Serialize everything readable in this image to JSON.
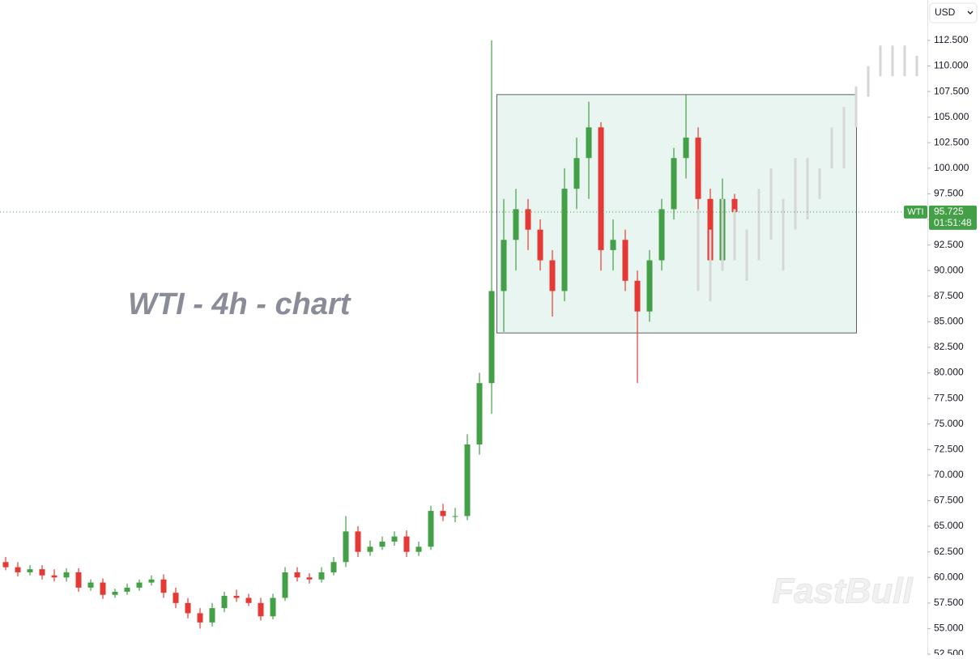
{
  "chart_data": {
    "type": "candlestick",
    "annotation": "WTI - 4h - chart",
    "watermark": "FastBull",
    "currency": "USD",
    "symbol": "WTI",
    "last_price": 95.725,
    "countdown": "01:51:48",
    "up_color": "#43a047",
    "down_color": "#e53935",
    "projection_color": "#d6d6d6",
    "open": [
      61.5,
      61,
      60.5,
      60.8,
      60.2,
      60,
      60.5,
      59,
      59.5,
      58.3,
      58.6,
      59,
      59.5,
      59.8,
      58.5,
      57.5,
      56.5,
      55.6,
      57,
      58.2,
      58,
      57.5,
      56.2,
      58,
      60.5,
      60,
      59.8,
      60.5,
      61.5,
      64.5,
      62.5,
      63,
      63.5,
      64,
      62.5,
      63,
      66.5,
      66,
      66,
      73,
      79,
      88,
      93,
      96,
      94,
      91,
      88,
      98,
      101,
      104,
      92,
      93,
      89,
      86,
      91,
      96,
      101,
      103,
      97,
      91,
      97
    ],
    "high": [
      62,
      61.5,
      61.2,
      61.2,
      60.8,
      60.9,
      60.9,
      59.8,
      59.9,
      58.9,
      59.4,
      59.8,
      60.2,
      60.3,
      59,
      58,
      57,
      57.5,
      58.6,
      58.8,
      58.4,
      58,
      58.4,
      61,
      61,
      60.4,
      61,
      62,
      66,
      65,
      63.6,
      64,
      64.5,
      64.6,
      63.5,
      67,
      67.2,
      66.8,
      74,
      80,
      112.5,
      97,
      98,
      97,
      95,
      92,
      100,
      103,
      106.5,
      104.5,
      95,
      94,
      90,
      92,
      97,
      102,
      107.2,
      104,
      98,
      99,
      97.5
    ],
    "low": [
      60.7,
      60.1,
      60.2,
      59.8,
      59.6,
      59.6,
      58.6,
      58.7,
      57.9,
      58,
      58.3,
      58.7,
      59.2,
      58,
      57,
      56,
      55,
      55.2,
      56.6,
      57.6,
      57.2,
      55.8,
      55.9,
      57.7,
      59.6,
      59.4,
      59.5,
      60.2,
      61,
      62,
      62.1,
      62.7,
      63.1,
      62,
      62.1,
      62.7,
      65.5,
      65.4,
      65.6,
      72,
      76,
      84,
      90,
      92,
      90,
      85.5,
      87,
      96,
      97,
      90,
      90,
      88,
      79,
      85,
      90,
      95,
      99,
      95,
      87,
      90,
      95
    ],
    "close": [
      61,
      60.5,
      60.8,
      60.2,
      60,
      60.5,
      59,
      59.5,
      58.3,
      58.6,
      59,
      59.5,
      59.8,
      58.5,
      57.5,
      56.5,
      55.6,
      57,
      58.2,
      58,
      57.5,
      56.2,
      58,
      60.5,
      60,
      59.8,
      60.5,
      61.5,
      64.5,
      62.5,
      63,
      63.5,
      64,
      62.5,
      63,
      66.5,
      66,
      66,
      73,
      79,
      88,
      93,
      96,
      94,
      91,
      88,
      98,
      101,
      104,
      92,
      93,
      89,
      86,
      91,
      96,
      101,
      103,
      97,
      91,
      97,
      95.725
    ],
    "projection": {
      "low": [
        88,
        87,
        90,
        91,
        89,
        91,
        93,
        90,
        94,
        95,
        97,
        100,
        100,
        104,
        107,
        109,
        109,
        109,
        109
      ],
      "high": [
        96,
        94,
        97,
        96,
        94,
        98,
        100,
        97,
        101,
        101,
        100,
        104,
        106,
        108,
        110,
        112,
        112,
        112,
        111
      ]
    },
    "range_box": {
      "ylim": [
        83.9,
        107.2
      ]
    },
    "ylim": [
      52.5,
      116.45
    ],
    "yticks": [
      {
        "value": 52.5,
        "label": "52.500"
      },
      {
        "value": 55,
        "label": "55.000"
      },
      {
        "value": 57.5,
        "label": "57.500"
      },
      {
        "value": 60,
        "label": "60.000"
      },
      {
        "value": 62.5,
        "label": "62.500"
      },
      {
        "value": 65,
        "label": "65.000"
      },
      {
        "value": 67.5,
        "label": "67.500"
      },
      {
        "value": 70,
        "label": "70.000"
      },
      {
        "value": 72.5,
        "label": "72.500"
      },
      {
        "value": 75,
        "label": "75.000"
      },
      {
        "value": 77.5,
        "label": "77.500"
      },
      {
        "value": 80,
        "label": "80.000"
      },
      {
        "value": 82.5,
        "label": "82.500"
      },
      {
        "value": 85,
        "label": "85.000"
      },
      {
        "value": 87.5,
        "label": "87.500"
      },
      {
        "value": 90,
        "label": "90.000"
      },
      {
        "value": 92.5,
        "label": "92.500"
      },
      {
        "value": 95,
        "label": "95.000"
      },
      {
        "value": 97.5,
        "label": "97.500"
      },
      {
        "value": 100,
        "label": "100.000"
      },
      {
        "value": 102.5,
        "label": "102.500"
      },
      {
        "value": 105,
        "label": "105.000"
      },
      {
        "value": 107.5,
        "label": "107.500"
      },
      {
        "value": 110,
        "label": "110.000"
      },
      {
        "value": 112.5,
        "label": "112.500"
      }
    ]
  }
}
